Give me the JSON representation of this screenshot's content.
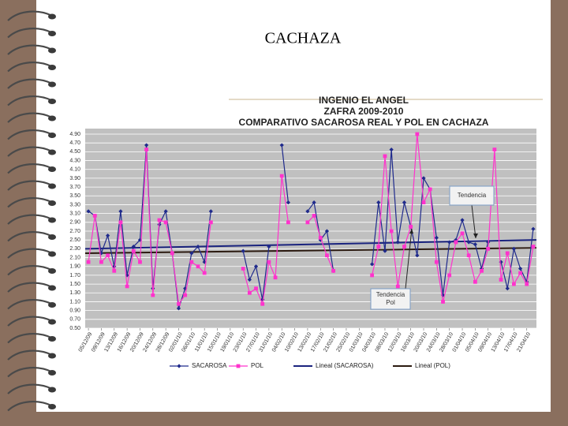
{
  "slide_title": "CACHAZA",
  "chart_data": {
    "type": "line",
    "title": [
      "INGENIO EL ANGEL",
      "ZAFRA 2009-2010",
      "COMPARATIVO SACAROSA REAL Y POL EN CACHAZA"
    ],
    "categories": [
      "05/12/09",
      null,
      "09/12/09",
      null,
      "13/12/09",
      null,
      "16/12/09",
      null,
      "20/12/09",
      null,
      "24/12/09",
      null,
      "28/12/09",
      null,
      "02/01/10",
      null,
      "06/01/10",
      null,
      "11/01/10",
      null,
      "15/01/10",
      null,
      "19/01/10",
      null,
      "23/01/10",
      null,
      "27/01/10",
      null,
      "31/01/10",
      null,
      "04/02/10",
      null,
      "10/02/10",
      null,
      "13/02/10",
      null,
      "17/02/10",
      null,
      "21/02/10",
      null,
      "25/02/10",
      null,
      "01/03/10",
      null,
      "04/03/10",
      null,
      "08/03/10",
      null,
      "12/03/10",
      null,
      "16/03/10",
      null,
      "20/03/10",
      null,
      "24/03/10",
      null,
      "28/03/10",
      null,
      "01/04/10",
      null,
      "05/04/10",
      null,
      "09/04/10",
      null,
      "13/04/10",
      null,
      "17/04/10",
      null,
      "21/04/10",
      null
    ],
    "series": [
      {
        "name": "SACAROSA",
        "color": "#1f2a8c",
        "marker": "diamond",
        "values": [
          3.15,
          3.05,
          2.2,
          2.6,
          1.9,
          3.15,
          1.7,
          2.35,
          2.5,
          4.65,
          1.4,
          2.85,
          3.15,
          2.2,
          0.95,
          1.4,
          2.2,
          2.35,
          2.0,
          3.15,
          null,
          null,
          null,
          null,
          2.25,
          1.6,
          1.9,
          1.15,
          2.35,
          null,
          4.65,
          3.35,
          null,
          null,
          3.15,
          3.35,
          2.5,
          2.7,
          1.8,
          null,
          null,
          null,
          null,
          null,
          1.95,
          3.35,
          2.25,
          4.55,
          2.45,
          3.35,
          2.8,
          2.15,
          3.9,
          3.65,
          2.55,
          1.25,
          2.45,
          2.5,
          2.95,
          2.45,
          2.4,
          1.85,
          2.45,
          null,
          2.0,
          1.4,
          2.3,
          1.85,
          1.55,
          2.75
        ]
      },
      {
        "name": "POL",
        "color": "#ff33cc",
        "marker": "square",
        "values": [
          2.0,
          3.05,
          2.0,
          2.15,
          1.8,
          2.9,
          1.45,
          2.25,
          2.0,
          4.55,
          1.25,
          2.95,
          2.9,
          2.2,
          1.05,
          1.25,
          2.0,
          1.9,
          1.75,
          2.9,
          null,
          null,
          null,
          null,
          1.85,
          1.3,
          1.4,
          1.05,
          2.0,
          1.65,
          3.95,
          2.9,
          null,
          null,
          2.9,
          3.05,
          2.55,
          2.15,
          1.8,
          null,
          null,
          null,
          null,
          null,
          1.7,
          2.35,
          4.4,
          2.7,
          1.45,
          2.35,
          2.8,
          4.9,
          3.35,
          3.65,
          2.0,
          1.1,
          1.7,
          2.45,
          2.65,
          2.15,
          1.55,
          1.8,
          2.3,
          4.55,
          1.6,
          2.2,
          1.5,
          1.75,
          1.5,
          2.35
        ]
      }
    ],
    "trendlines": [
      {
        "name": "Lineal (SACAROSA)",
        "color": "#1a237e",
        "start": 2.3,
        "end": 2.5
      },
      {
        "name": "Lineal (POL)",
        "color": "#2b1a10",
        "start": 2.2,
        "end": 2.32
      }
    ],
    "annotations": [
      [
        "Tendencia"
      ],
      [
        "Tendencia",
        "Pol"
      ]
    ],
    "ylim": [
      0.5,
      4.9
    ],
    "yticks": [
      {
        "value": 0.5,
        "label": "0.50"
      },
      {
        "value": 0.7,
        "label": "0.70"
      },
      {
        "value": 0.9,
        "label": "0.90"
      },
      {
        "value": 1.1,
        "label": "1.10"
      },
      {
        "value": 1.3,
        "label": "1.30"
      },
      {
        "value": 1.5,
        "label": "1.50"
      },
      {
        "value": 1.7,
        "label": "1.70"
      },
      {
        "value": 1.9,
        "label": "1.90"
      },
      {
        "value": 2.1,
        "label": "2.10"
      },
      {
        "value": 2.3,
        "label": "2.30"
      },
      {
        "value": 2.5,
        "label": "2.50"
      },
      {
        "value": 2.7,
        "label": "2.70"
      },
      {
        "value": 2.9,
        "label": "2.90"
      },
      {
        "value": 3.1,
        "label": "3.10"
      },
      {
        "value": 3.3,
        "label": "3.30"
      },
      {
        "value": 3.5,
        "label": "3.50"
      },
      {
        "value": 3.7,
        "label": "3.70"
      },
      {
        "value": 3.9,
        "label": "3.90"
      },
      {
        "value": 4.1,
        "label": "4.10"
      },
      {
        "value": 4.3,
        "label": "4.30"
      },
      {
        "value": 4.5,
        "label": "4.50"
      },
      {
        "value": 4.7,
        "label": "4.70"
      },
      {
        "value": 4.9,
        "label": "4.90"
      }
    ],
    "grid": true
  }
}
